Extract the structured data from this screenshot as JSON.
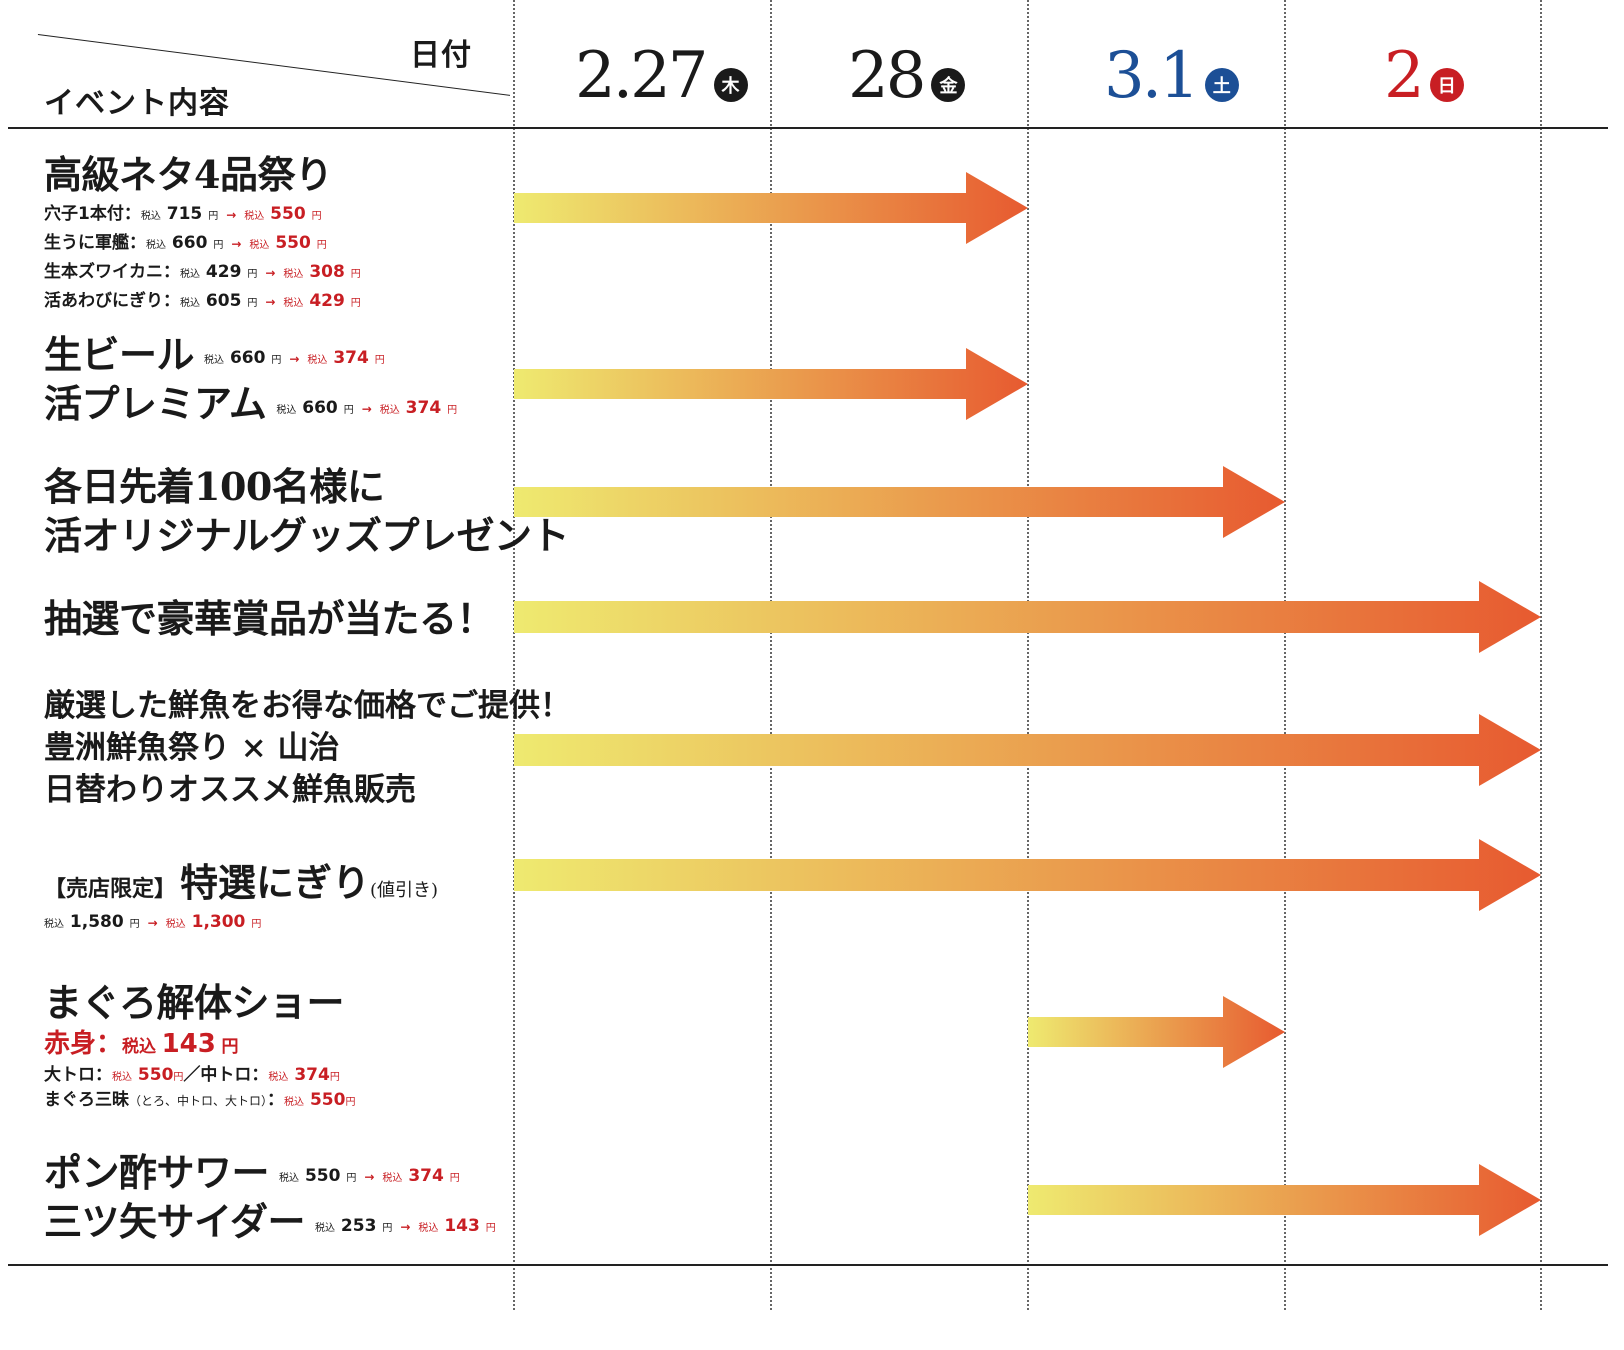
{
  "header": {
    "corner_date_label": "日付",
    "corner_event_label": "イベント内容",
    "dates": [
      {
        "num": "2.27",
        "dow": "木",
        "color": "#1a1a1a",
        "badge": "#1a1a1a"
      },
      {
        "num": "28",
        "dow": "金",
        "color": "#1a1a1a",
        "badge": "#1a1a1a"
      },
      {
        "num": "3.1",
        "dow": "土",
        "color": "#1c4f96",
        "badge": "#1c4f96"
      },
      {
        "num": "2",
        "dow": "日",
        "color": "#c81e23",
        "badge": "#c81e23"
      }
    ]
  },
  "arrow_colors": {
    "start": "#eeea70",
    "end": "#e75a30"
  },
  "events": [
    {
      "title": "高級ネタ4品祭り",
      "start_day": 0,
      "end_day": 2,
      "items": [
        {
          "name": "穴子1本付：",
          "tax": "税込",
          "before": "715",
          "yen": "円",
          "arrow": "→",
          "after": "550"
        },
        {
          "name": "生うに軍艦：",
          "tax": "税込",
          "before": "660",
          "yen": "円",
          "arrow": "→",
          "after": "550"
        },
        {
          "name": "生本ズワイカニ：",
          "tax": "税込",
          "before": "429",
          "yen": "円",
          "arrow": "→",
          "after": "308"
        },
        {
          "name": "活あわびにぎり：",
          "tax": "税込",
          "before": "605",
          "yen": "円",
          "arrow": "→",
          "after": "429"
        }
      ]
    },
    {
      "lines": [
        {
          "name": "生ビール",
          "tax": "税込",
          "before": "660",
          "yen": "円",
          "arrow": "→",
          "after": "374"
        },
        {
          "name": "活プレミアム",
          "tax": "税込",
          "before": "660",
          "yen": "円",
          "arrow": "→",
          "after": "374"
        }
      ],
      "start_day": 0,
      "end_day": 2
    },
    {
      "lines": [
        "各日先着100名様に",
        "活オリジナルグッズプレゼント"
      ],
      "start_day": 0,
      "end_day": 3
    },
    {
      "lines": [
        "抽選で豪華賞品が当たる！"
      ],
      "start_day": 0,
      "end_day": 4
    },
    {
      "lines": [
        "厳選した鮮魚をお得な価格でご提供！",
        "豊洲鮮魚祭り × 山治",
        "日替わりオススメ鮮魚販売"
      ],
      "start_day": 0,
      "end_day": 4
    },
    {
      "prefix": "【売店限定】",
      "title": "特選にぎり",
      "suffix": "(値引き)",
      "price": {
        "tax": "税込",
        "before": "1,580",
        "yen": "円",
        "arrow": "→",
        "after": "1,300"
      },
      "start_day": 0,
      "end_day": 4
    },
    {
      "title": "まぐろ解体ショー",
      "main_price": {
        "name": "赤身：",
        "tax": "税込",
        "value": "143",
        "yen": "円"
      },
      "sub1": {
        "a_name": "大トロ：",
        "a_tax": "税込",
        "a_value": "550",
        "a_yen": "円",
        "sep": "／",
        "b_name": "中トロ：",
        "b_tax": "税込",
        "b_value": "374",
        "b_yen": "円"
      },
      "sub2": {
        "name": "まぐろ三昧",
        "detail": "（とろ、中トロ、大トロ）",
        "colon": "：",
        "tax": "税込",
        "value": "550",
        "yen": "円"
      },
      "start_day": 2,
      "end_day": 3
    },
    {
      "lines": [
        {
          "name": "ポン酢サワー",
          "tax": "税込",
          "before": "550",
          "yen": "円",
          "arrow": "→",
          "after": "374"
        },
        {
          "name": "三ツ矢サイダー",
          "tax": "税込",
          "before": "253",
          "yen": "円",
          "arrow": "→",
          "after": "143"
        }
      ],
      "start_day": 2,
      "end_day": 4
    }
  ]
}
